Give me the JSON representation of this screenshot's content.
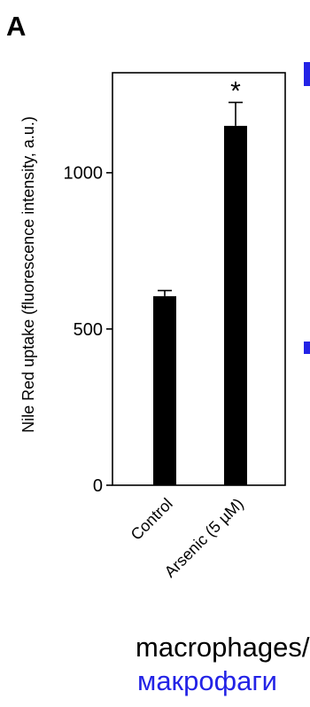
{
  "panel_label": "A",
  "chart_data": {
    "type": "bar",
    "categories": [
      "Control",
      "Arsenic (5 µM)"
    ],
    "values": [
      605,
      1150
    ],
    "errors": [
      18,
      75
    ],
    "significance": [
      "",
      "*"
    ],
    "ylabel": "Nile Red uptake (fluorescence intensity, a.u.)",
    "ylim": [
      0,
      1320
    ],
    "yticks": [
      0,
      500,
      1000
    ],
    "bar_color": "#000000",
    "grid": false,
    "axis_frame": "box"
  },
  "caption": {
    "english": "macrophages/",
    "russian": "макрофаги",
    "russian_color": "#2323e6"
  }
}
